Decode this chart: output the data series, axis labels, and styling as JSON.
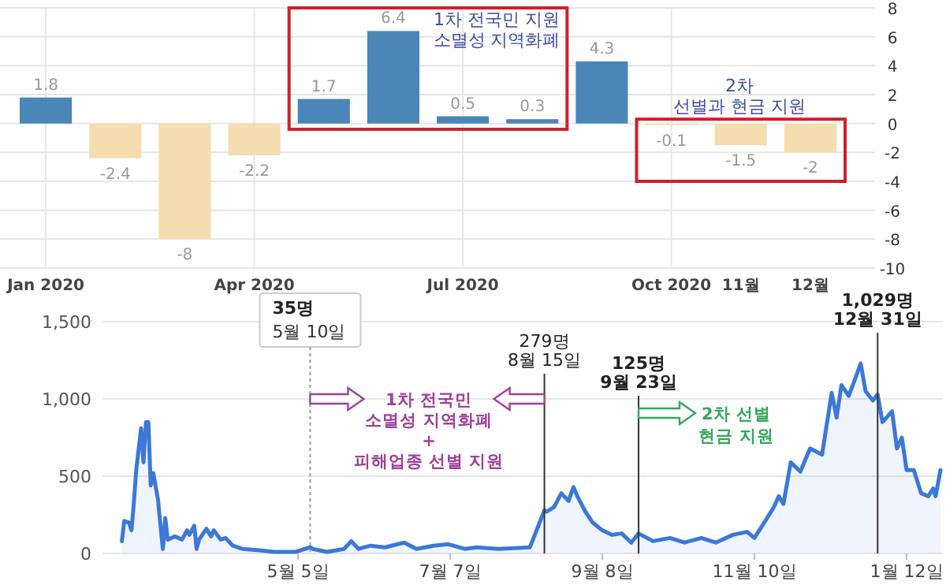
{
  "chart_data": [
    {
      "type": "bar",
      "categories": [
        "Jan 2020",
        null,
        null,
        "Apr 2020",
        null,
        null,
        "Jul 2020",
        null,
        null,
        "Oct 2020",
        "11월",
        "12월"
      ],
      "values": [
        1.8,
        -2.4,
        -8,
        -2.2,
        1.7,
        6.4,
        0.5,
        0.3,
        4.3,
        -0.1,
        -1.5,
        -2
      ],
      "colors": [
        "#4a86b8",
        "#f5ddb0",
        "#f5ddb0",
        "#f5ddb0",
        "#4a86b8",
        "#4a86b8",
        "#4a86b8",
        "#4a86b8",
        "#4a86b8",
        "#f5ddb0",
        "#f5ddb0",
        "#f5ddb0"
      ],
      "ylim": [
        -10,
        8
      ],
      "yticks": [
        -10,
        -8,
        -6,
        -4,
        -2,
        0,
        2,
        4,
        6,
        8
      ],
      "grid": true,
      "data_labels": true,
      "annotations": [
        "1차 전국민 지원\n소멸성 지역화폐",
        "2차\n선별과 현금 지원"
      ]
    },
    {
      "type": "area",
      "series": [
        {
          "color": "#3b78d8",
          "x": [
            "2020-02-22",
            "2020-02-23",
            "2020-02-25",
            "2020-02-26",
            "2020-02-27",
            "2020-02-28",
            "2020-03-01",
            "2020-03-02",
            "2020-03-03",
            "2020-03-04",
            "2020-03-05",
            "2020-03-06",
            "2020-03-08",
            "2020-03-09",
            "2020-03-10",
            "2020-03-11",
            "2020-03-12",
            "2020-03-15",
            "2020-03-18",
            "2020-03-20",
            "2020-03-21",
            "2020-03-23",
            "2020-03-24",
            "2020-03-25",
            "2020-03-28",
            "2020-03-30",
            "2020-03-31",
            "2020-04-03",
            "2020-04-05",
            "2020-04-08",
            "2020-04-12",
            "2020-04-19",
            "2020-04-25",
            "2020-05-04",
            "2020-05-10",
            "2020-05-11",
            "2020-05-17",
            "2020-05-24",
            "2020-05-27",
            "2020-05-30",
            "2020-06-04",
            "2020-06-10",
            "2020-06-18",
            "2020-06-23",
            "2020-06-30",
            "2020-07-06",
            "2020-07-13",
            "2020-07-18",
            "2020-07-27",
            "2020-08-09",
            "2020-08-15",
            "2020-08-16",
            "2020-08-19",
            "2020-08-22",
            "2020-08-25",
            "2020-08-27",
            "2020-08-29",
            "2020-09-01",
            "2020-09-04",
            "2020-09-08",
            "2020-09-12",
            "2020-09-16",
            "2020-09-20",
            "2020-09-23",
            "2020-09-29",
            "2020-10-06",
            "2020-10-12",
            "2020-10-19",
            "2020-10-25",
            "2020-11-01",
            "2020-11-07",
            "2020-11-10",
            "2020-11-14",
            "2020-11-18",
            "2020-11-20",
            "2020-11-22",
            "2020-11-25",
            "2020-11-29",
            "2020-12-03",
            "2020-12-08",
            "2020-12-12",
            "2020-12-14",
            "2020-12-16",
            "2020-12-19",
            "2020-12-21",
            "2020-12-24",
            "2020-12-26",
            "2020-12-29",
            "2020-12-31",
            "2021-01-02",
            "2021-01-06",
            "2021-01-08",
            "2021-01-10",
            "2021-01-12",
            "2021-01-15",
            "2021-01-18",
            "2021-01-21",
            "2021-01-23",
            "2021-01-24",
            "2021-01-26"
          ],
          "values": [
            80,
            210,
            200,
            150,
            330,
            540,
            810,
            590,
            850,
            850,
            440,
            520,
            350,
            180,
            30,
            230,
            90,
            110,
            90,
            150,
            120,
            180,
            30,
            90,
            160,
            110,
            150,
            90,
            100,
            50,
            30,
            20,
            10,
            10,
            40,
            30,
            10,
            30,
            80,
            30,
            50,
            40,
            70,
            30,
            50,
            60,
            30,
            40,
            30,
            40,
            280,
            270,
            300,
            390,
            340,
            430,
            360,
            270,
            200,
            150,
            120,
            130,
            70,
            130,
            80,
            100,
            70,
            100,
            70,
            120,
            140,
            100,
            200,
            300,
            370,
            320,
            590,
            530,
            680,
            640,
            1040,
            880,
            1090,
            1020,
            1100,
            1230,
            1050,
            990,
            1030,
            850,
            920,
            680,
            750,
            540,
            540,
            390,
            370,
            420,
            370,
            540
          ]
        }
      ],
      "xlim": [
        "2020-02-14",
        "2021-01-27"
      ],
      "ylim": [
        0,
        1500
      ],
      "xticks": [
        {
          "value": "2020-05-05",
          "label": "5월 5일"
        },
        {
          "value": "2020-07-07",
          "label": "7월 7일"
        },
        {
          "value": "2020-09-08",
          "label": "9월 8일"
        },
        {
          "value": "2020-11-10",
          "label": "11월 10일"
        },
        {
          "value": "2021-01-12",
          "label": "1월 12일"
        }
      ],
      "yticks": [
        0,
        500,
        {
          "value": 1000,
          "label": "1,000"
        },
        {
          "value": 1500,
          "label": "1,500"
        }
      ],
      "grid": "y",
      "ref_lines": [
        {
          "axis": "x",
          "value": "2020-05-10",
          "label": "35명\n5월 10일",
          "line_style": "dotted",
          "color": "#999999"
        },
        {
          "axis": "x",
          "value": "2020-08-15",
          "label": "279명\n8월 15일",
          "color": "#333333"
        },
        {
          "axis": "x",
          "value": "2020-09-23",
          "label": "125명\n9월 23일",
          "color": "#333333"
        },
        {
          "axis": "x",
          "value": "2020-12-31",
          "label": "1,029명\n12월 31일",
          "color": "#333333"
        }
      ],
      "annotations": [
        "1차 전국민\n소멸성 지역화폐\n+\n피해업종 선별 지원",
        "2차 선별\n현금 지원"
      ]
    }
  ]
}
